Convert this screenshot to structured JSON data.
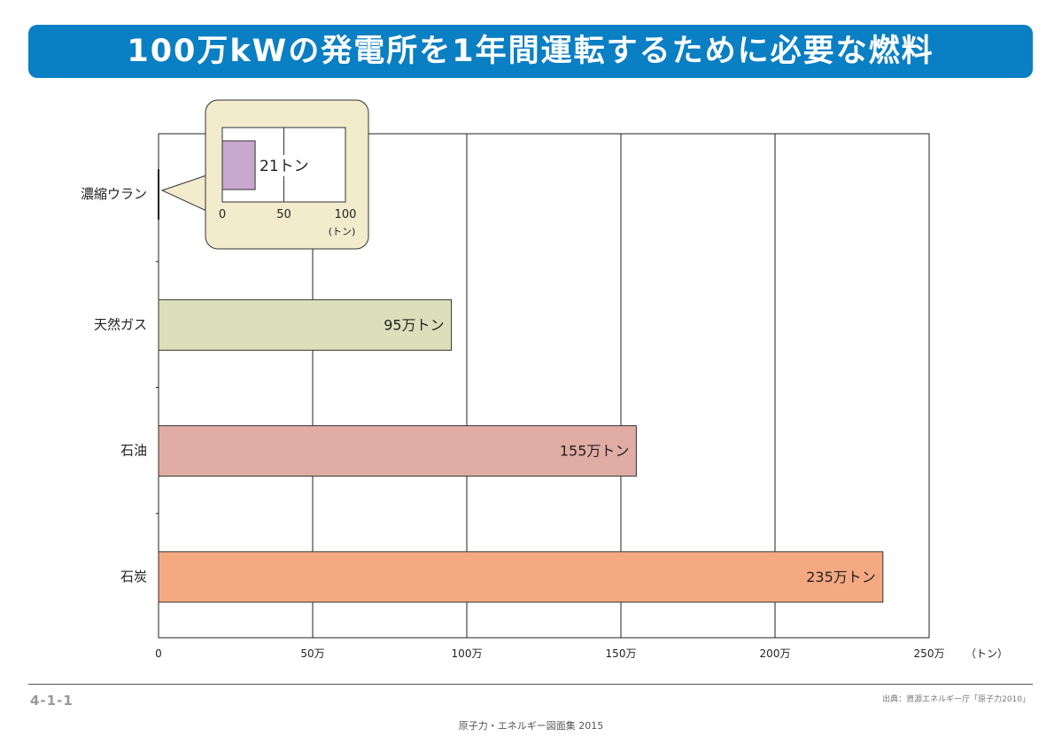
{
  "title": "100万kWの発電所を1年間運転するために必要な燃料",
  "page_number": "4-1-1",
  "source": "出典：資源エネルギー庁「原子力2010」",
  "book": "原子力・エネルギー図面集 2015",
  "chart_data": {
    "type": "bar",
    "orientation": "horizontal",
    "title": "100万kWの発電所を1年間運転するために必要な燃料",
    "xlabel": "（トン）",
    "xlim": [
      0,
      250
    ],
    "x_unit": "万トン",
    "xticks": [
      0,
      50,
      100,
      150,
      200,
      250
    ],
    "xtick_labels": [
      "0",
      "50万",
      "100万",
      "150万",
      "200万",
      "250万"
    ],
    "categories": [
      "濃縮ウラン",
      "天然ガス",
      "石油",
      "石炭"
    ],
    "values": [
      0.0021,
      95,
      155,
      235
    ],
    "data_labels": [
      "21トン",
      "95万トン",
      "155万トン",
      "235万トン"
    ],
    "colors": [
      "#c8a8cf",
      "#dbe0bb",
      "#e0aca4",
      "#f4a981"
    ],
    "grid": true,
    "inset": {
      "category": "濃縮ウラン",
      "value": 21,
      "label": "21トン",
      "xlim": [
        0,
        100
      ],
      "xticks": [
        0,
        50,
        100
      ],
      "xtick_labels": [
        "0",
        "50",
        "100"
      ],
      "unit_label": "(トン)",
      "color": "#c8a8cf",
      "background": "#f2ebcc"
    }
  }
}
